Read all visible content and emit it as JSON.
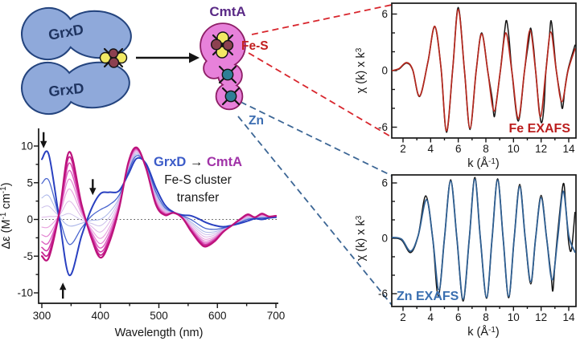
{
  "colors": {
    "blob_fill": "#8fa9da",
    "blob_stroke": "#24447e",
    "grxd_text": "#1f3460",
    "cmta_fill": "#e781da",
    "cmta_stroke": "#8d1e66",
    "cmta_text": "#5a2a86",
    "fe_atom": "#8c4150",
    "s_atom": "#f2e964",
    "zn_atom": "#2f7f96",
    "fes_text": "#c11f1f",
    "zn_text": "#3c6db1",
    "red_dash": "#d8262d",
    "blue_dash": "#3c6695",
    "fe_exafs_label": "#bb1e1e",
    "zn_exafs_label": "#3a6fb0",
    "cd_from": "#3b5bc8",
    "cd_to": "#a133a8"
  },
  "diagram": {
    "grxd_top": "GrxD",
    "grxd_bottom": "GrxD",
    "cmta_title": "CmtA",
    "fes_label": "Fe-S",
    "zn_label": "Zn"
  },
  "cd_plot": {
    "ylabel_p1": "Δε (M",
    "ylabel_s1": "-1",
    "ylabel_p2": " cm",
    "ylabel_s2": "-1",
    "ylabel_p3": ")",
    "xlabel": "Wavelength (nm)",
    "yticks": [
      "10",
      "5",
      "0",
      "-5",
      "-10"
    ],
    "xticks": [
      "300",
      "400",
      "500",
      "600",
      "700"
    ],
    "annotation_from": "GrxD",
    "annotation_arrow": " → ",
    "annotation_to": "CmtA",
    "annotation_line2": "Fe-S cluster",
    "annotation_line3": "transfer"
  },
  "fe_plot": {
    "label": "Fe EXAFS",
    "ylabel_p1": "χ (k) x k",
    "ylabel_s1": "3",
    "xlabel_p1": "k (Å",
    "xlabel_s1": "-1",
    "xlabel_p2": ")",
    "yticks": [
      "6",
      "0",
      "-6"
    ],
    "xticks": [
      "2",
      "4",
      "6",
      "8",
      "10",
      "12",
      "14"
    ]
  },
  "zn_plot": {
    "label": "Zn EXAFS",
    "ylabel_p1": "χ (k) x k",
    "ylabel_s1": "3",
    "xlabel_p1": "k (Å",
    "xlabel_s1": "-1",
    "xlabel_p2": ")",
    "yticks": [
      "6",
      "0",
      "-6"
    ],
    "xticks": [
      "2",
      "4",
      "6",
      "8",
      "10",
      "12",
      "14"
    ]
  },
  "chart_data": [
    {
      "id": "cd",
      "type": "line",
      "title": "GrxD → CmtA Fe-S cluster transfer (CD time course)",
      "xlabel": "Wavelength (nm)",
      "ylabel": "Δε (M-1 cm-1)",
      "xlim": [
        300,
        700
      ],
      "ylim": [
        -10,
        10
      ],
      "grid": false,
      "x": [
        300,
        312,
        330,
        347,
        368,
        385,
        400,
        415,
        432,
        448,
        462,
        478,
        495,
        510,
        525,
        540,
        555,
        570,
        580,
        595,
        610,
        625,
        640,
        652,
        664,
        676,
        688,
        700
      ],
      "start_values": [
        8.2,
        8.8,
        0.0,
        -7.6,
        -2.2,
        1.5,
        3.5,
        3.7,
        3.9,
        6.2,
        8.3,
        7.6,
        4.3,
        2.0,
        1.0,
        0.6,
        0.5,
        0.0,
        -0.4,
        -0.8,
        -1.0,
        -0.8,
        -0.5,
        -0.2,
        0.1,
        0.0,
        0.2,
        0.3
      ],
      "end_values": [
        -5.0,
        -5.2,
        1.0,
        9.2,
        2.0,
        -2.6,
        -5.2,
        -3.2,
        1.5,
        7.8,
        9.8,
        7.0,
        2.0,
        0.6,
        0.9,
        0.2,
        -1.6,
        -3.2,
        -3.7,
        -3.0,
        -1.7,
        -0.8,
        0.1,
        0.7,
        0.3,
        0.8,
        0.4,
        0.5
      ],
      "family": [
        {
          "t": 0.5,
          "color": "#ccc0eb",
          "width": 1.0
        },
        {
          "t": 0.6,
          "color": "#ddb6e7",
          "width": 1.0
        },
        {
          "t": 0.4,
          "color": "#a9b4e8",
          "width": 1.0
        },
        {
          "t": 0.7,
          "color": "#e8a2de",
          "width": 1.1
        },
        {
          "t": 0.78,
          "color": "#e383d1",
          "width": 1.2
        },
        {
          "t": 0.25,
          "color": "#4a66cf",
          "width": 1.3
        },
        {
          "t": 0.85,
          "color": "#dc5fc0",
          "width": 1.4
        },
        {
          "t": 0.91,
          "color": "#d23aa6",
          "width": 1.6
        },
        {
          "t": 0.96,
          "color": "#c62391",
          "width": 1.8
        },
        {
          "t": 0.0,
          "color": "#2940c0",
          "width": 2.0
        },
        {
          "t": 1.0,
          "color": "#bd137c",
          "width": 2.2
        }
      ],
      "arrows": [
        {
          "x": 303,
          "v": 9.7,
          "dir": "down"
        },
        {
          "x": 336,
          "v": -8.6,
          "dir": "up"
        },
        {
          "x": 387,
          "v": 3.3,
          "dir": "down"
        }
      ]
    },
    {
      "id": "fe",
      "type": "line",
      "title": "Fe EXAFS",
      "xlabel": "k (Å-1)",
      "ylabel": "χ (k) x k3",
      "xlim": [
        1.2,
        14.5
      ],
      "ylim": [
        -7,
        7
      ],
      "grid": false,
      "series": [
        {
          "name": "experiment",
          "color": "#141414",
          "width": 1.5,
          "points": [
            [
              1.2,
              0.0
            ],
            [
              1.7,
              0.15
            ],
            [
              2.25,
              0.8
            ],
            [
              2.7,
              0.05
            ],
            [
              3.2,
              -2.75
            ],
            [
              3.8,
              0.9
            ],
            [
              4.3,
              4.65
            ],
            [
              4.75,
              0.3
            ],
            [
              5.15,
              -6.55
            ],
            [
              5.6,
              0.2
            ],
            [
              6.0,
              6.7
            ],
            [
              6.45,
              0.0
            ],
            [
              6.85,
              -6.25
            ],
            [
              7.3,
              0.0
            ],
            [
              7.7,
              4.0
            ],
            [
              8.15,
              -0.2
            ],
            [
              8.45,
              -2.9
            ],
            [
              8.6,
              -4.9
            ],
            [
              8.78,
              -3.1
            ],
            [
              9.05,
              0.0
            ],
            [
              9.35,
              4.1
            ],
            [
              9.5,
              5.3
            ],
            [
              9.68,
              3.4
            ],
            [
              9.9,
              -0.3
            ],
            [
              10.35,
              -5.35
            ],
            [
              10.8,
              0.0
            ],
            [
              11.1,
              3.1
            ],
            [
              11.25,
              4.5
            ],
            [
              11.45,
              2.5
            ],
            [
              11.6,
              0.0
            ],
            [
              11.88,
              -4.4
            ],
            [
              12.05,
              -5.5
            ],
            [
              12.22,
              -3.6
            ],
            [
              12.35,
              0.0
            ],
            [
              12.58,
              3.3
            ],
            [
              12.72,
              5.3
            ],
            [
              12.9,
              3.1
            ],
            [
              13.1,
              0.0
            ],
            [
              13.38,
              -2.6
            ],
            [
              13.55,
              -4.0
            ],
            [
              13.75,
              -1.6
            ],
            [
              13.98,
              0.3
            ],
            [
              14.45,
              2.7
            ]
          ]
        },
        {
          "name": "fit",
          "color": "#b5281e",
          "width": 1.7,
          "points": [
            [
              1.2,
              0.0
            ],
            [
              1.7,
              0.2
            ],
            [
              2.25,
              0.85
            ],
            [
              2.7,
              0.1
            ],
            [
              3.2,
              -2.7
            ],
            [
              3.8,
              0.9
            ],
            [
              4.3,
              4.7
            ],
            [
              4.75,
              0.3
            ],
            [
              5.15,
              -6.4
            ],
            [
              5.6,
              0.2
            ],
            [
              6.0,
              6.5
            ],
            [
              6.45,
              0.0
            ],
            [
              6.85,
              -6.1
            ],
            [
              7.3,
              0.0
            ],
            [
              7.7,
              3.9
            ],
            [
              8.15,
              -0.2
            ],
            [
              8.6,
              -4.3
            ],
            [
              9.05,
              0.0
            ],
            [
              9.45,
              4.0
            ],
            [
              9.9,
              -0.3
            ],
            [
              10.35,
              -5.1
            ],
            [
              10.8,
              0.0
            ],
            [
              11.2,
              4.3
            ],
            [
              11.6,
              0.0
            ],
            [
              11.95,
              -4.9
            ],
            [
              12.35,
              0.0
            ],
            [
              12.7,
              4.1
            ],
            [
              13.1,
              0.0
            ],
            [
              13.5,
              -3.3
            ],
            [
              13.95,
              0.0
            ],
            [
              14.45,
              2.3
            ]
          ]
        }
      ]
    },
    {
      "id": "zn",
      "type": "line",
      "title": "Zn EXAFS",
      "xlabel": "k (Å-1)",
      "ylabel": "χ (k) x k3",
      "xlim": [
        1.2,
        14.5
      ],
      "ylim": [
        -7,
        7
      ],
      "grid": false,
      "series": [
        {
          "name": "experiment",
          "color": "#141414",
          "width": 1.5,
          "points": [
            [
              1.2,
              0.1
            ],
            [
              1.9,
              -0.2
            ],
            [
              2.55,
              -1.55
            ],
            [
              3.1,
              0.3
            ],
            [
              3.65,
              4.6
            ],
            [
              4.15,
              0.0
            ],
            [
              4.55,
              -6.25
            ],
            [
              5.0,
              0.0
            ],
            [
              5.45,
              6.35
            ],
            [
              5.9,
              0.0
            ],
            [
              6.35,
              -6.8
            ],
            [
              6.8,
              0.0
            ],
            [
              7.2,
              6.6
            ],
            [
              7.6,
              0.0
            ],
            [
              8.05,
              -6.5
            ],
            [
              8.45,
              0.0
            ],
            [
              8.85,
              6.45
            ],
            [
              9.25,
              0.0
            ],
            [
              9.65,
              -6.45
            ],
            [
              10.05,
              0.0
            ],
            [
              10.45,
              5.85
            ],
            [
              10.85,
              0.0
            ],
            [
              11.25,
              -4.95
            ],
            [
              11.6,
              0.0
            ],
            [
              12.0,
              4.65
            ],
            [
              12.4,
              0.0
            ],
            [
              12.72,
              -4.0
            ],
            [
              12.85,
              -5.7
            ],
            [
              13.0,
              -2.8
            ],
            [
              13.2,
              0.6
            ],
            [
              13.6,
              5.9
            ],
            [
              13.8,
              3.2
            ],
            [
              14.0,
              -0.5
            ],
            [
              14.2,
              -1.2
            ],
            [
              14.45,
              2.8
            ]
          ]
        },
        {
          "name": "fit",
          "color": "#2f5f92",
          "width": 1.8,
          "points": [
            [
              1.2,
              0.1
            ],
            [
              1.9,
              -0.1
            ],
            [
              2.55,
              -1.4
            ],
            [
              3.1,
              0.3
            ],
            [
              3.7,
              4.2
            ],
            [
              4.15,
              0.0
            ],
            [
              4.6,
              -5.6
            ],
            [
              5.0,
              0.0
            ],
            [
              5.45,
              6.2
            ],
            [
              5.9,
              0.0
            ],
            [
              6.35,
              -6.6
            ],
            [
              6.8,
              0.0
            ],
            [
              7.2,
              6.4
            ],
            [
              7.6,
              0.0
            ],
            [
              8.05,
              -6.4
            ],
            [
              8.45,
              0.0
            ],
            [
              8.85,
              6.3
            ],
            [
              9.25,
              0.0
            ],
            [
              9.65,
              -6.3
            ],
            [
              10.05,
              0.0
            ],
            [
              10.45,
              5.6
            ],
            [
              10.85,
              0.0
            ],
            [
              11.25,
              -4.7
            ],
            [
              11.6,
              0.0
            ],
            [
              12.0,
              4.4
            ],
            [
              12.4,
              0.0
            ],
            [
              12.8,
              -4.5
            ],
            [
              13.2,
              0.0
            ],
            [
              13.6,
              5.1
            ],
            [
              14.0,
              0.3
            ],
            [
              14.45,
              -1.5
            ]
          ]
        }
      ]
    }
  ]
}
